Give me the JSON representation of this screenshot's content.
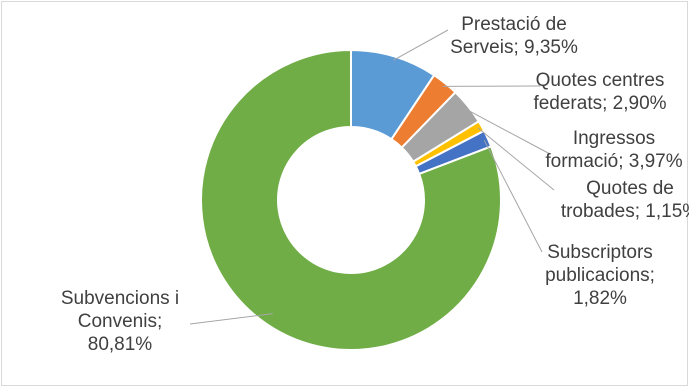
{
  "chart_data": {
    "type": "pie",
    "variant": "donut",
    "slices": [
      {
        "label": "Prestació de Serveis",
        "value_label": "9,35%",
        "value": 9.35,
        "color": "#5b9bd5"
      },
      {
        "label": "Quotes centres federats",
        "value_label": "2,90%",
        "value": 2.9,
        "color": "#ed7d31"
      },
      {
        "label": "Ingressos formació",
        "value_label": "3,97%",
        "value": 3.97,
        "color": "#a5a5a5"
      },
      {
        "label": "Quotes de trobades",
        "value_label": "1,15%",
        "value": 1.15,
        "color": "#ffc000"
      },
      {
        "label": "Subscriptors publicacions",
        "value_label": "1,82%",
        "value": 1.82,
        "color": "#4472c4"
      },
      {
        "label": "Subvencions i Convenis",
        "value_label": "80,81%",
        "value": 80.81,
        "color": "#70ad47"
      }
    ],
    "data_labels": [
      [
        "Prestació de",
        "Serveis; 9,35%"
      ],
      [
        "Quotes centres",
        "federats; 2,90%"
      ],
      [
        "Ingressos",
        "formació; 3,97%"
      ],
      [
        "Quotes de",
        "trobades; 1,15%"
      ],
      [
        "Subscriptors",
        "publicacions;",
        "1,82%"
      ],
      [
        "Subvencions i",
        "Convenis;",
        "80,81%"
      ]
    ]
  }
}
